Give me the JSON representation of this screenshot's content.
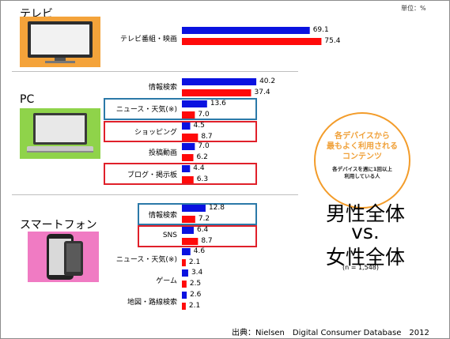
{
  "unit_label": "単位：%",
  "title_lines": [
    "男性全体",
    "vs.",
    "女性全体"
  ],
  "sample_note": "(n = 1,548)",
  "source": "出典：Nielsen　Digital Consumer Database　2012",
  "callout": {
    "main": "各デバイスから\n最もよく利用される\nコンテンツ",
    "sub": "各デバイスを週に1回以上\n利用している人"
  },
  "colors": {
    "male": "#0a12e0",
    "female": "#ff0a0a",
    "highlight_red": "#e0202a",
    "highlight_blue": "#2b79a8",
    "accent_orange": "#f39c2a"
  },
  "icons": [
    "tv-icon",
    "laptop-icon",
    "smartphone-icon"
  ],
  "chart_data": {
    "type": "bar",
    "orientation": "horizontal",
    "series_colors": [
      "#0a12e0",
      "#ff0a0a"
    ],
    "sections": [
      {
        "name": "テレビ",
        "categories": [
          {
            "label": "テレビ番組・映画",
            "values": [
              69.1,
              75.4
            ],
            "highlight": null
          }
        ]
      },
      {
        "name": "PC",
        "categories": [
          {
            "label": "情報検索",
            "values": [
              40.2,
              37.4
            ],
            "highlight": null
          },
          {
            "label": "ニュース・天気(※)",
            "values": [
              13.6,
              7.0
            ],
            "highlight": "blue"
          },
          {
            "label": "ショッピング",
            "values": [
              4.5,
              8.7
            ],
            "highlight": "red"
          },
          {
            "label": "投稿動画",
            "values": [
              7.0,
              6.2
            ],
            "highlight": null
          },
          {
            "label": "ブログ・掲示板",
            "values": [
              4.4,
              6.3
            ],
            "highlight": "red"
          }
        ]
      },
      {
        "name": "スマートフォン",
        "categories": [
          {
            "label": "情報検索",
            "values": [
              12.8,
              7.2
            ],
            "highlight": "blue"
          },
          {
            "label": "SNS",
            "values": [
              6.4,
              8.7
            ],
            "highlight": "red"
          },
          {
            "label": "ニュース・天気(※)",
            "values": [
              4.6,
              2.1
            ],
            "highlight": null
          },
          {
            "label": "ゲーム",
            "values": [
              3.4,
              2.5
            ],
            "highlight": null
          },
          {
            "label": "地図・路線検索",
            "values": [
              2.6,
              2.1
            ],
            "highlight": null
          }
        ]
      }
    ]
  }
}
